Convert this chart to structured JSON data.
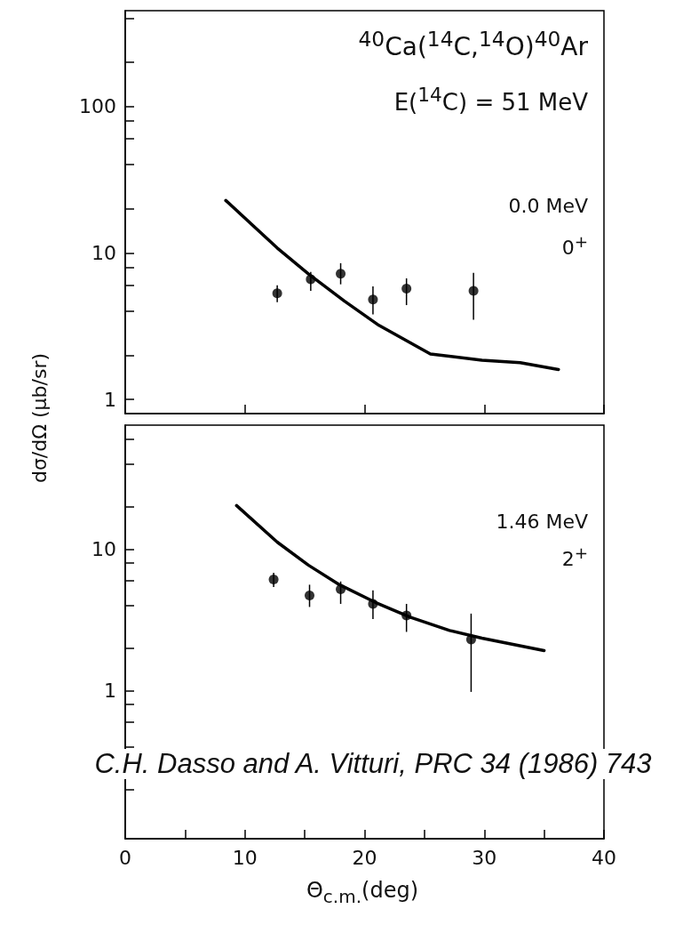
{
  "chart_data": [
    {
      "type": "scatter",
      "ylabel": "dσ/dΩ  (μb/sr)",
      "log": "y",
      "grid": false,
      "tick_labels": "y",
      "xlim": [
        0,
        40
      ],
      "xticks": [
        0,
        10,
        20,
        30,
        40
      ],
      "ylim": [
        0.8,
        450
      ],
      "yticks": [
        1,
        {
          "value": 2,
          "label": null
        },
        {
          "value": 4,
          "label": null
        },
        {
          "value": 6,
          "label": null
        },
        {
          "value": 8,
          "label": null
        },
        10,
        {
          "value": 20,
          "label": null
        },
        {
          "value": 40,
          "label": null
        },
        {
          "value": 60,
          "label": null
        },
        {
          "value": 80,
          "label": null
        },
        100,
        {
          "value": 200,
          "label": null
        },
        {
          "value": 400,
          "label": null
        }
      ],
      "annotations": [
        "$^{40}$Ca($^{14}$C,$^{14}$O)$^{40}$Ar",
        "E($^{14}$C) = 51 MeV",
        "0.0 MeV",
        "0$^{+}$"
      ],
      "series": [
        {
          "marker": "circle",
          "color": "#000000",
          "x": [
            12.7,
            15.5,
            18.0,
            20.7,
            23.5,
            29.1
          ],
          "values": [
            5.3,
            6.6,
            7.2,
            4.8,
            5.7,
            5.5
          ],
          "errors": [
            [
              4.6,
              6.0
            ],
            [
              5.5,
              7.4
            ],
            [
              6.1,
              8.5
            ],
            [
              3.8,
              5.9
            ],
            [
              4.4,
              6.7
            ],
            [
              3.5,
              7.3
            ]
          ]
        },
        {
          "type": "line",
          "marker": "none",
          "color": "#000000",
          "line_style": "solid",
          "x": [
            8.4,
            12.7,
            15.3,
            18.3,
            21.2,
            25.5,
            29.8,
            33.0,
            36.2
          ],
          "values": [
            22.8,
            10.8,
            7.2,
            4.7,
            3.2,
            2.04,
            1.85,
            1.78,
            1.6
          ]
        }
      ]
    },
    {
      "type": "scatter",
      "xlabel": "Θ$_{c.m.}$(deg)",
      "log": "y",
      "grid": false,
      "xlim": [
        0,
        40
      ],
      "xticks": [
        0,
        {
          "value": 5,
          "label": null
        },
        10,
        {
          "value": 15,
          "label": null
        },
        20,
        {
          "value": 25,
          "label": null
        },
        30,
        {
          "value": 35,
          "label": null
        },
        40
      ],
      "ylim": [
        0.09,
        75
      ],
      "yticks": [
        {
          "value": 0.2,
          "label": null
        },
        {
          "value": 0.4,
          "label": null
        },
        {
          "value": 0.6,
          "label": null
        },
        {
          "value": 0.8,
          "label": null
        },
        1,
        {
          "value": 2,
          "label": null
        },
        {
          "value": 4,
          "label": null
        },
        {
          "value": 6,
          "label": null
        },
        {
          "value": 8,
          "label": null
        },
        10,
        {
          "value": 20,
          "label": null
        },
        {
          "value": 40,
          "label": null
        },
        {
          "value": 60,
          "label": null
        }
      ],
      "annotations": [
        "1.46 MeV",
        "2$^{+}$",
        "C.H. Dasso and A. Vitturi, PRC 34 (1986) 743"
      ],
      "series": [
        {
          "marker": "circle",
          "color": "#000000",
          "x": [
            12.4,
            15.4,
            18.0,
            20.7,
            23.5,
            28.9
          ],
          "values": [
            6.1,
            4.7,
            5.2,
            4.1,
            3.4,
            2.3
          ],
          "errors": [
            [
              5.4,
              6.8
            ],
            [
              3.9,
              5.6
            ],
            [
              4.1,
              5.9
            ],
            [
              3.2,
              5.1
            ],
            [
              2.6,
              4.1
            ],
            [
              0.98,
              3.5
            ]
          ]
        },
        {
          "type": "line",
          "marker": "none",
          "color": "#000000",
          "line_style": "solid",
          "x": [
            9.3,
            12.7,
            15.3,
            17.9,
            20.9,
            23.8,
            27.1,
            29.8,
            32.4,
            35.0
          ],
          "values": [
            20.3,
            11.2,
            7.7,
            5.6,
            4.2,
            3.3,
            2.66,
            2.35,
            2.12,
            1.92
          ]
        }
      ]
    }
  ]
}
